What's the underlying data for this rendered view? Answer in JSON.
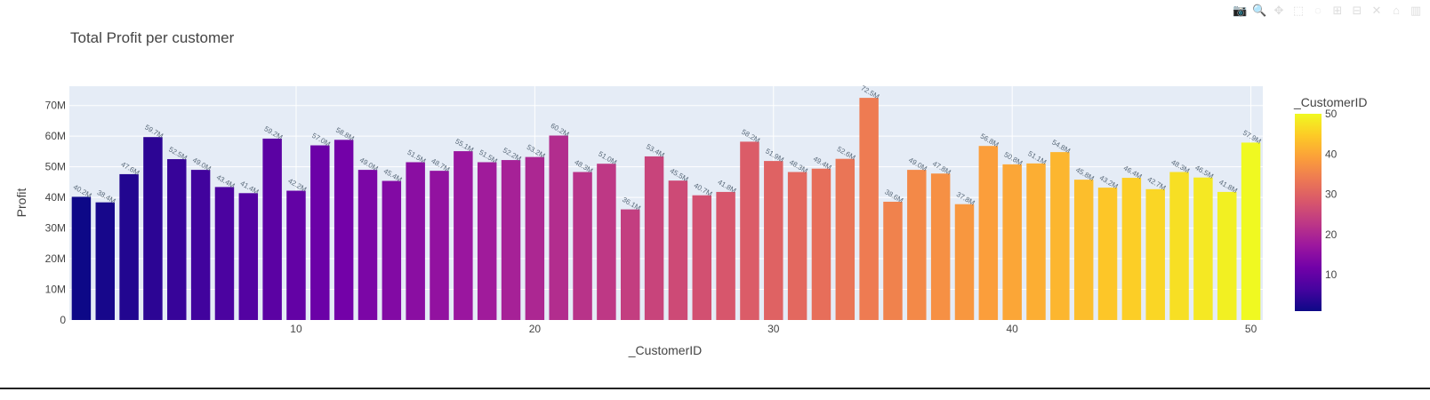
{
  "modebar": {
    "icons": [
      "camera-icon",
      "zoom-icon",
      "pan-icon",
      "box-select-icon",
      "lasso-icon",
      "zoom-in-icon",
      "zoom-out-icon",
      "autoscale-icon",
      "home-icon",
      "plotly-logo-icon"
    ],
    "glyphs": [
      "📷",
      "🔍",
      "✥",
      "⬚",
      "◌",
      "⊞",
      "⊟",
      "✕",
      "⌂",
      "▥"
    ]
  },
  "chart_data": {
    "type": "bar",
    "title": "Total Profit per customer",
    "xlabel": "_CustomerID",
    "ylabel": "Profit",
    "x": [
      1,
      2,
      3,
      4,
      5,
      6,
      7,
      8,
      9,
      10,
      11,
      12,
      13,
      14,
      15,
      16,
      17,
      18,
      19,
      20,
      21,
      22,
      23,
      24,
      25,
      26,
      27,
      28,
      29,
      30,
      31,
      32,
      33,
      34,
      35,
      36,
      37,
      38,
      39,
      40,
      41,
      42,
      43,
      44,
      45,
      46,
      47,
      48,
      49,
      50
    ],
    "values": [
      40.2,
      38.4,
      47.6,
      59.7,
      52.5,
      49.0,
      43.4,
      41.4,
      59.2,
      42.2,
      57.0,
      58.8,
      49.0,
      45.4,
      51.5,
      48.7,
      55.1,
      51.5,
      52.2,
      53.2,
      60.2,
      48.3,
      51.0,
      36.1,
      53.4,
      45.5,
      40.7,
      41.8,
      58.2,
      51.9,
      48.3,
      49.4,
      52.6,
      72.5,
      38.6,
      49.0,
      47.8,
      37.8,
      56.8,
      50.8,
      51.1,
      54.8,
      45.8,
      43.2,
      46.4,
      42.7,
      48.3,
      46.5,
      41.8,
      57.9
    ],
    "value_unit": "M",
    "data_labels": [
      "40.2M",
      "38.4M",
      "47.6M",
      "59.7M",
      "52.5M",
      "49.0M",
      "43.4M",
      "41.4M",
      "59.2M",
      "42.2M",
      "57.0M",
      "58.8M",
      "49.0M",
      "45.4M",
      "51.5M",
      "48.7M",
      "55.1M",
      "51.5M",
      "52.2M",
      "53.2M",
      "60.2M",
      "48.3M",
      "51.0M",
      "36.1M",
      "53.4M",
      "45.5M",
      "40.7M",
      "41.8M",
      "58.2M",
      "51.9M",
      "48.3M",
      "49.4M",
      "52.6M",
      "72.5M",
      "38.6M",
      "49.0M",
      "47.8M",
      "37.8M",
      "56.8M",
      "50.8M",
      "51.1M",
      "54.8M",
      "45.8M",
      "43.2M",
      "46.4M",
      "42.7M",
      "48.3M",
      "46.5M",
      "41.8M",
      "57.9M"
    ],
    "xlim": [
      0.5,
      50.5
    ],
    "ylim": [
      0,
      76.3
    ],
    "xticks": [
      10,
      20,
      30,
      40,
      50
    ],
    "xtick_labels": [
      "10",
      "20",
      "30",
      "40",
      "50"
    ],
    "yticks": [
      0,
      10,
      20,
      30,
      40,
      50,
      60,
      70
    ],
    "ytick_labels": [
      "0",
      "10M",
      "20M",
      "30M",
      "40M",
      "50M",
      "60M",
      "70M"
    ],
    "grid": true,
    "plot_bgcolor": "#e5ecf6",
    "colorscale": "plasma",
    "colorbar": {
      "title": "_CustomerID",
      "range": [
        1,
        50
      ],
      "ticks": [
        10,
        20,
        30,
        40,
        50
      ],
      "tick_labels": [
        "10",
        "20",
        "30",
        "40",
        "50"
      ]
    }
  }
}
